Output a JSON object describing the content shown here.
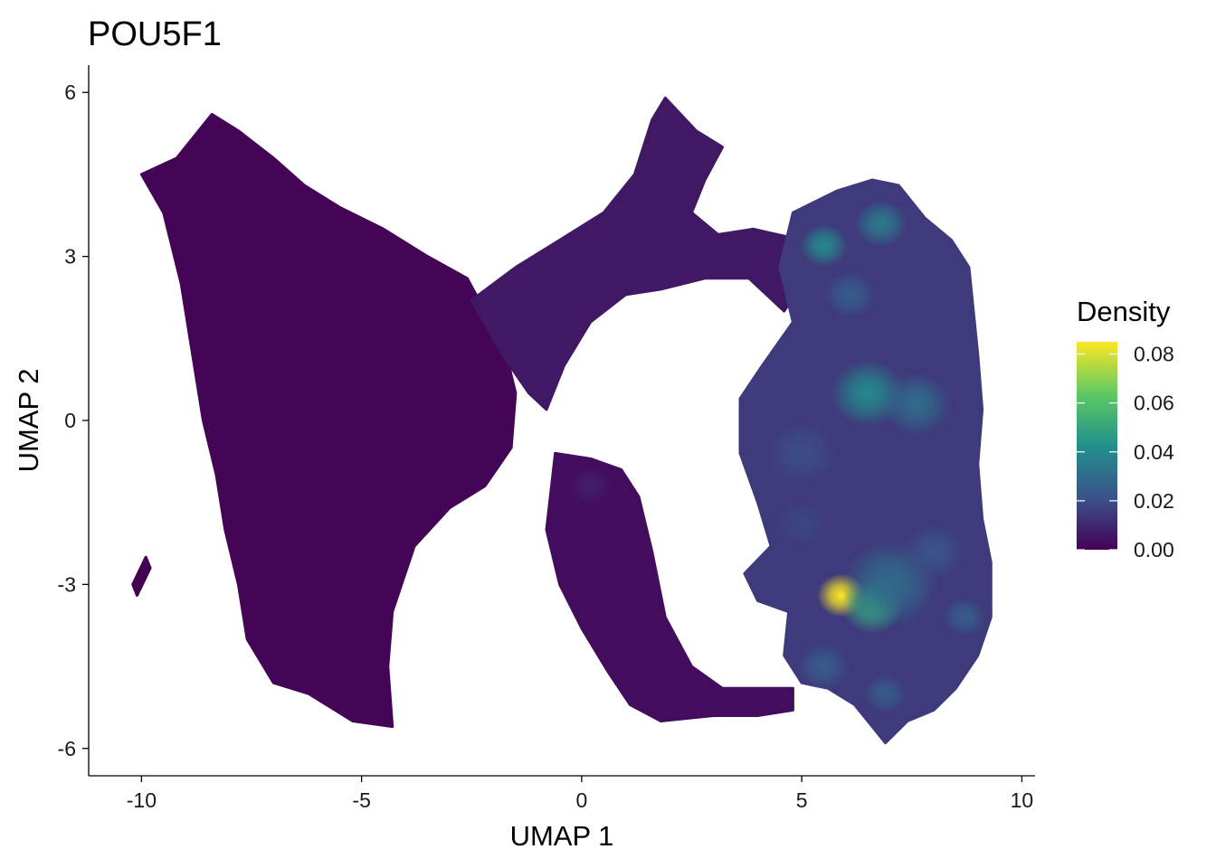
{
  "chart_data": {
    "type": "scatter",
    "title": "POU5F1",
    "xlabel": "UMAP 1",
    "ylabel": "UMAP 2",
    "xlim": [
      -11.2,
      10.3
    ],
    "ylim": [
      -6.5,
      6.5
    ],
    "x_ticks": [
      -10,
      -5,
      0,
      5,
      10
    ],
    "x_tick_labels": [
      "-10",
      "-5",
      "0",
      "5",
      "10"
    ],
    "y_ticks": [
      -6,
      -3,
      0,
      3,
      6
    ],
    "y_tick_labels": [
      "-6",
      "-3",
      "0",
      "3",
      "6"
    ],
    "grid": false,
    "colormap": "viridis",
    "colors": [
      "#440154",
      "#3b528b",
      "#21918c",
      "#5ec962",
      "#fde725"
    ],
    "legend": {
      "title": "Density",
      "position": "right",
      "range": [
        0,
        0.085
      ],
      "ticks": [
        0.0,
        0.02,
        0.04,
        0.06,
        0.08
      ],
      "tick_labels": [
        "0.00",
        "0.02",
        "0.04",
        "0.06",
        "0.08"
      ]
    },
    "regions": [
      {
        "name": "left-lobe",
        "density": 0.001,
        "outline": [
          [
            -10.0,
            4.5
          ],
          [
            -9.2,
            4.8
          ],
          [
            -8.4,
            5.6
          ],
          [
            -7.8,
            5.3
          ],
          [
            -7.0,
            4.8
          ],
          [
            -6.3,
            4.3
          ],
          [
            -5.5,
            3.9
          ],
          [
            -4.5,
            3.5
          ],
          [
            -3.5,
            3.0
          ],
          [
            -2.6,
            2.6
          ],
          [
            -2.2,
            2.0
          ],
          [
            -1.8,
            1.5
          ],
          [
            -1.5,
            0.5
          ],
          [
            -1.6,
            -0.5
          ],
          [
            -2.2,
            -1.2
          ],
          [
            -3.0,
            -1.6
          ],
          [
            -3.8,
            -2.3
          ],
          [
            -4.3,
            -3.5
          ],
          [
            -4.4,
            -4.5
          ],
          [
            -4.3,
            -5.6
          ],
          [
            -5.2,
            -5.5
          ],
          [
            -6.2,
            -5.0
          ],
          [
            -7.0,
            -4.8
          ],
          [
            -7.6,
            -4.0
          ],
          [
            -7.8,
            -3.0
          ],
          [
            -8.1,
            -2.0
          ],
          [
            -8.3,
            -1.0
          ],
          [
            -8.6,
            0.0
          ],
          [
            -8.9,
            1.5
          ],
          [
            -9.1,
            2.5
          ],
          [
            -9.5,
            3.8
          ]
        ]
      },
      {
        "name": "upper-bridge",
        "density": 0.006,
        "outline": [
          [
            -2.5,
            2.2
          ],
          [
            -1.5,
            2.8
          ],
          [
            -0.5,
            3.3
          ],
          [
            0.5,
            3.8
          ],
          [
            1.2,
            4.5
          ],
          [
            1.6,
            5.5
          ],
          [
            1.9,
            5.9
          ],
          [
            2.6,
            5.3
          ],
          [
            3.2,
            5.0
          ],
          [
            2.8,
            4.4
          ],
          [
            2.5,
            3.8
          ],
          [
            3.1,
            3.4
          ],
          [
            3.9,
            3.5
          ],
          [
            5.0,
            3.3
          ],
          [
            5.0,
            2.5
          ],
          [
            4.6,
            2.0
          ],
          [
            3.8,
            2.6
          ],
          [
            2.8,
            2.6
          ],
          [
            1.8,
            2.4
          ],
          [
            1.0,
            2.3
          ],
          [
            0.2,
            1.8
          ],
          [
            -0.4,
            1.0
          ],
          [
            -0.8,
            0.2
          ],
          [
            -1.2,
            0.5
          ],
          [
            -1.8,
            1.2
          ]
        ]
      },
      {
        "name": "lower-arm",
        "density": 0.003,
        "outline": [
          [
            -0.6,
            -0.6
          ],
          [
            0.2,
            -0.7
          ],
          [
            0.9,
            -0.9
          ],
          [
            1.3,
            -1.4
          ],
          [
            1.6,
            -2.4
          ],
          [
            1.9,
            -3.6
          ],
          [
            2.5,
            -4.5
          ],
          [
            3.2,
            -4.9
          ],
          [
            4.0,
            -4.9
          ],
          [
            4.8,
            -4.9
          ],
          [
            4.8,
            -5.3
          ],
          [
            4.0,
            -5.4
          ],
          [
            3.0,
            -5.4
          ],
          [
            1.8,
            -5.5
          ],
          [
            1.1,
            -5.2
          ],
          [
            0.6,
            -4.6
          ],
          [
            0.0,
            -3.8
          ],
          [
            -0.5,
            -3.0
          ],
          [
            -0.8,
            -2.0
          ]
        ]
      },
      {
        "name": "right-lobe",
        "density": 0.015,
        "outline": [
          [
            4.8,
            3.8
          ],
          [
            5.8,
            4.2
          ],
          [
            6.6,
            4.4
          ],
          [
            7.2,
            4.3
          ],
          [
            7.8,
            3.7
          ],
          [
            8.4,
            3.3
          ],
          [
            8.8,
            2.8
          ],
          [
            8.9,
            2.0
          ],
          [
            9.0,
            1.2
          ],
          [
            9.1,
            0.2
          ],
          [
            9.0,
            -0.8
          ],
          [
            9.1,
            -1.8
          ],
          [
            9.3,
            -2.6
          ],
          [
            9.3,
            -3.6
          ],
          [
            9.0,
            -4.3
          ],
          [
            8.5,
            -4.9
          ],
          [
            8.0,
            -5.3
          ],
          [
            7.4,
            -5.5
          ],
          [
            6.9,
            -5.9
          ],
          [
            6.6,
            -5.6
          ],
          [
            6.2,
            -5.2
          ],
          [
            5.6,
            -4.9
          ],
          [
            5.0,
            -4.8
          ],
          [
            4.6,
            -4.3
          ],
          [
            4.7,
            -3.5
          ],
          [
            4.0,
            -3.3
          ],
          [
            3.7,
            -2.8
          ],
          [
            4.3,
            -2.3
          ],
          [
            4.0,
            -1.5
          ],
          [
            3.6,
            -0.6
          ],
          [
            3.6,
            0.4
          ],
          [
            4.1,
            1.0
          ],
          [
            4.8,
            1.8
          ],
          [
            4.5,
            2.8
          ]
        ]
      },
      {
        "name": "left-island",
        "density": 0.0,
        "outline": [
          [
            -10.2,
            -3.0
          ],
          [
            -9.9,
            -2.5
          ],
          [
            -9.8,
            -2.7
          ],
          [
            -10.1,
            -3.2
          ]
        ]
      }
    ],
    "hotspots": [
      {
        "x": 5.9,
        "y": -3.2,
        "peak": 0.085,
        "spread": 0.55
      },
      {
        "x": 6.6,
        "y": -3.4,
        "peak": 0.05,
        "spread": 0.7
      },
      {
        "x": 7.0,
        "y": -3.0,
        "peak": 0.03,
        "spread": 1.1
      },
      {
        "x": 6.5,
        "y": 0.5,
        "peak": 0.04,
        "spread": 0.85
      },
      {
        "x": 7.6,
        "y": 0.3,
        "peak": 0.03,
        "spread": 0.8
      },
      {
        "x": 5.5,
        "y": 3.2,
        "peak": 0.04,
        "spread": 0.55
      },
      {
        "x": 6.8,
        "y": 3.6,
        "peak": 0.035,
        "spread": 0.6
      },
      {
        "x": 6.1,
        "y": 2.3,
        "peak": 0.025,
        "spread": 0.6
      },
      {
        "x": 5.0,
        "y": -0.6,
        "peak": 0.02,
        "spread": 0.8
      },
      {
        "x": 5.5,
        "y": -4.5,
        "peak": 0.025,
        "spread": 0.6
      },
      {
        "x": 8.0,
        "y": -2.4,
        "peak": 0.022,
        "spread": 0.7
      },
      {
        "x": 6.9,
        "y": -5.0,
        "peak": 0.025,
        "spread": 0.5
      },
      {
        "x": 8.7,
        "y": -3.6,
        "peak": 0.025,
        "spread": 0.5
      },
      {
        "x": 5.0,
        "y": -1.9,
        "peak": 0.018,
        "spread": 0.6
      },
      {
        "x": 0.2,
        "y": -1.2,
        "peak": 0.008,
        "spread": 0.5
      }
    ]
  }
}
